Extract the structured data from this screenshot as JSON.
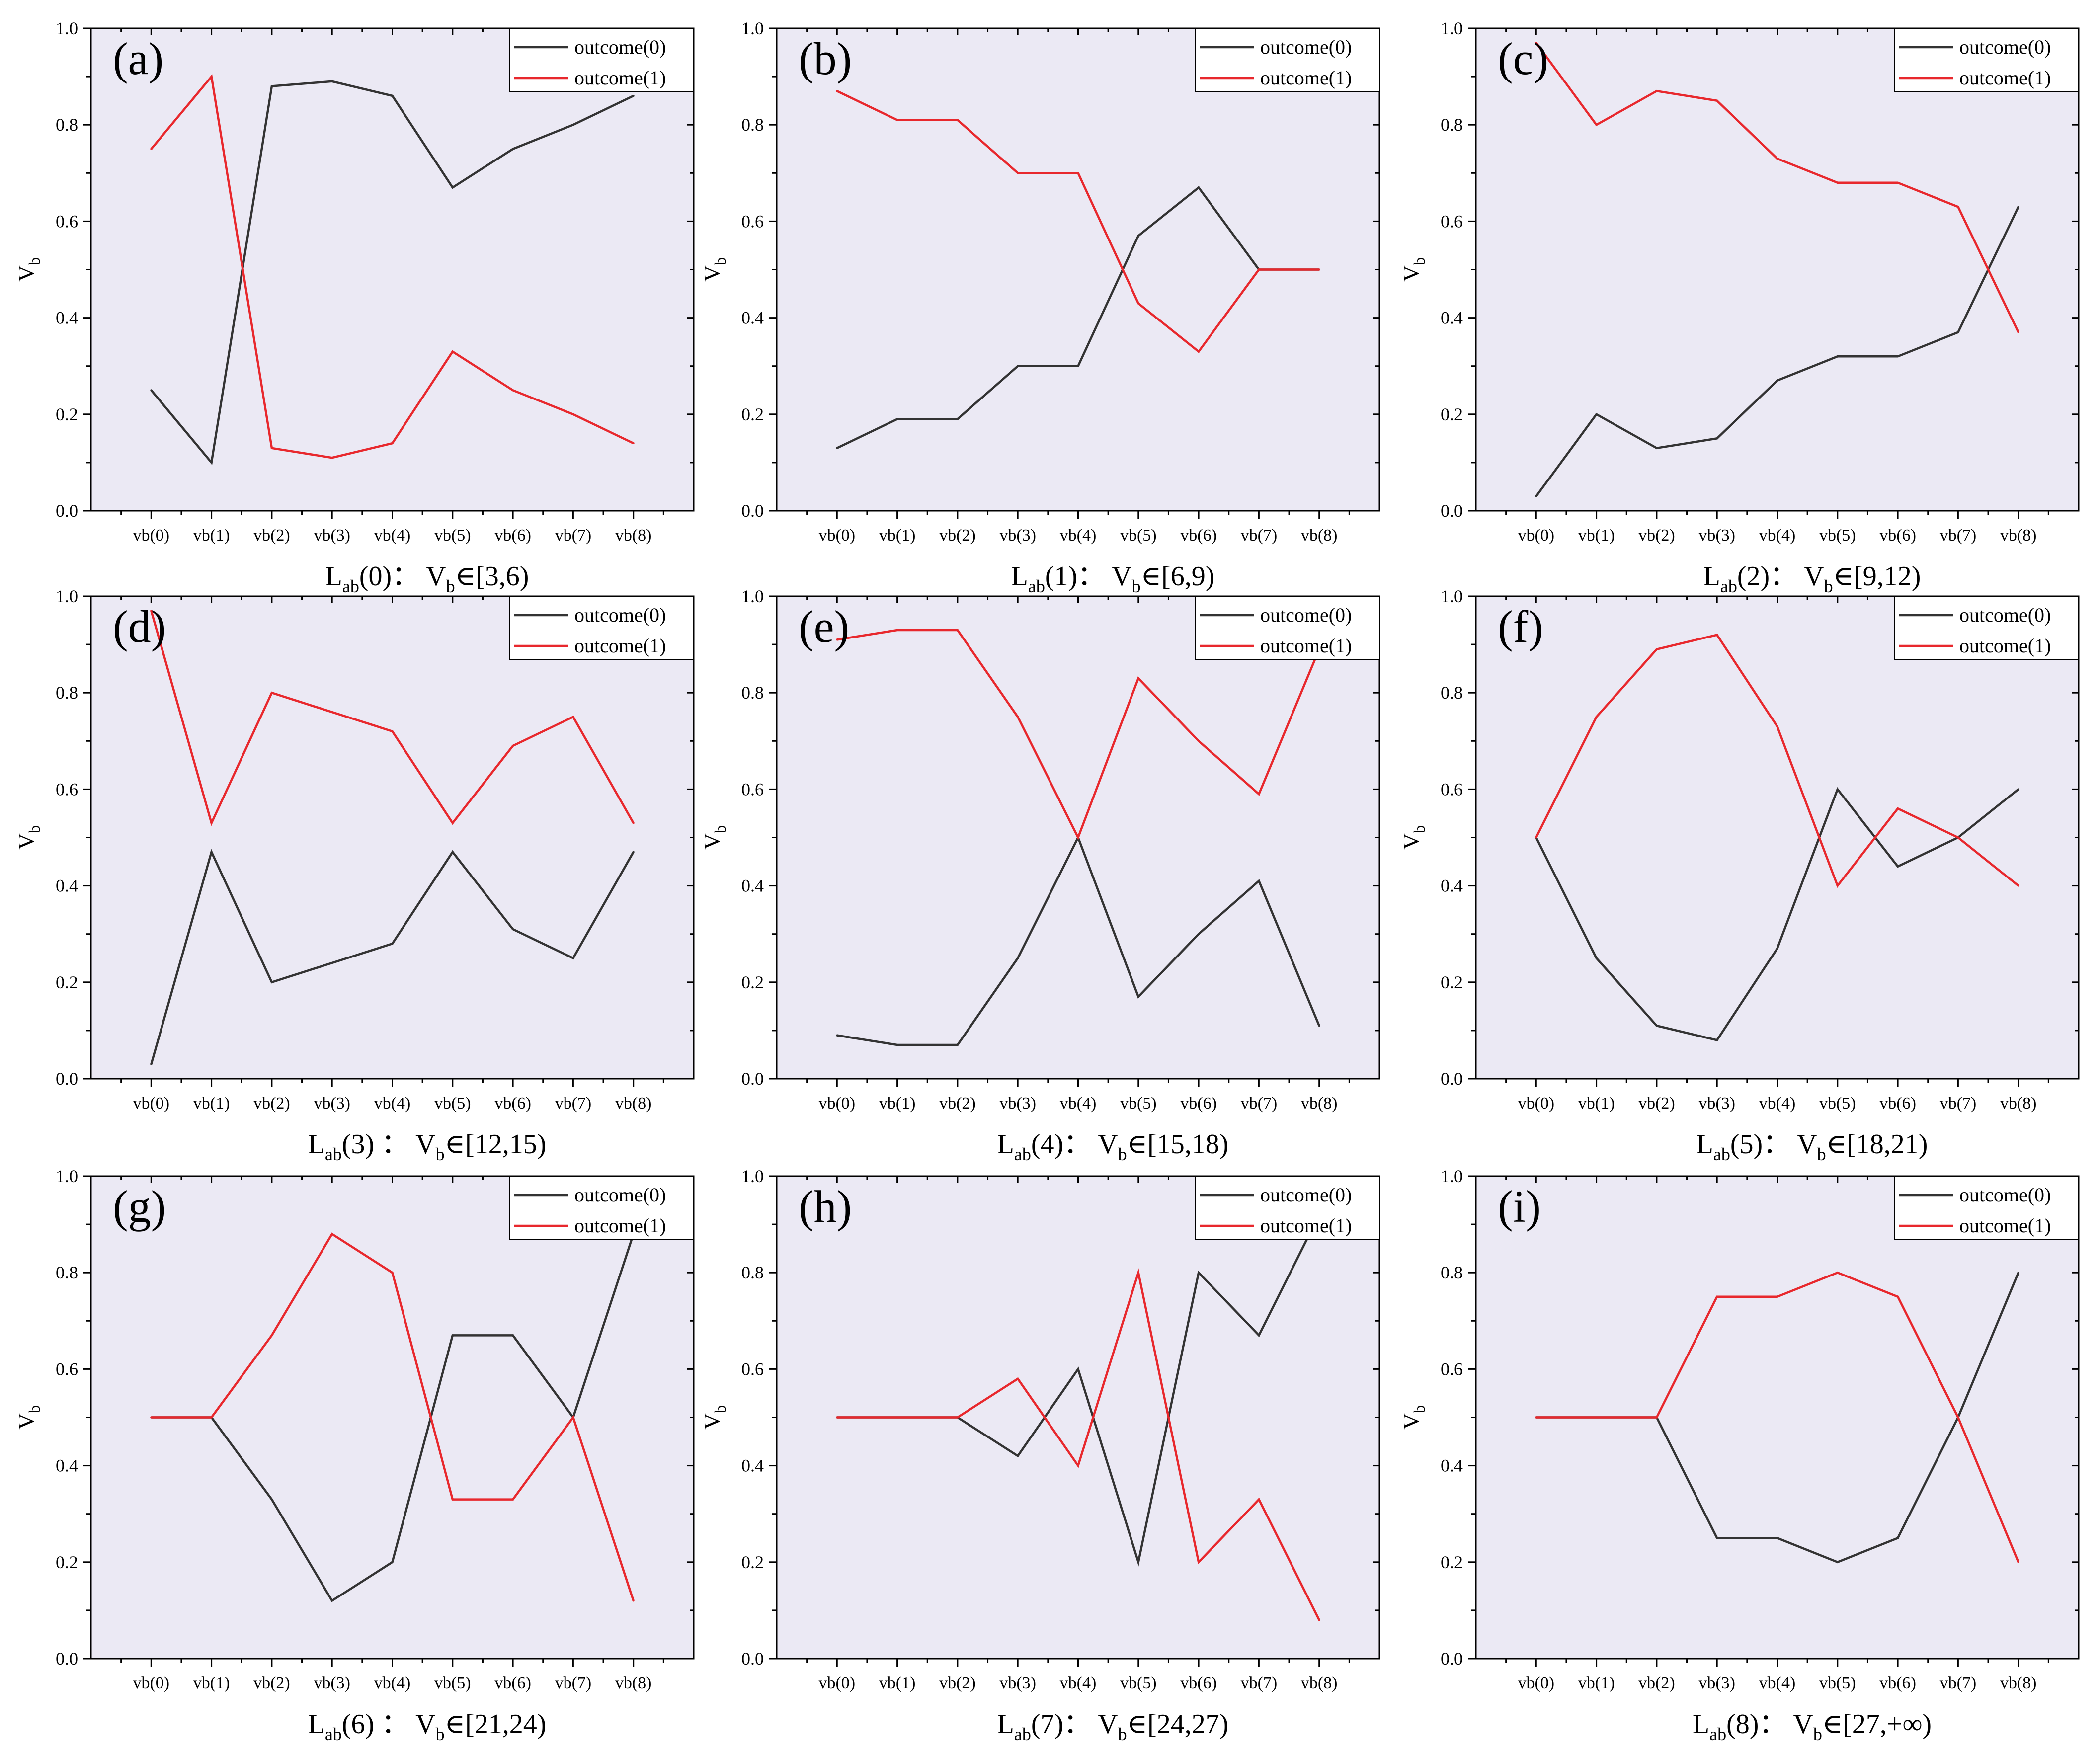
{
  "chart_data": [
    {
      "panel": "(a)",
      "type": "line",
      "categories": [
        "vb(0)",
        "vb(1)",
        "vb(2)",
        "vb(3)",
        "vb(4)",
        "vb(5)",
        "vb(6)",
        "vb(7)",
        "vb(8)"
      ],
      "series": [
        {
          "name": "outcome(0)",
          "color": "#333333",
          "values": [
            0.25,
            0.1,
            0.88,
            0.89,
            0.86,
            0.67,
            0.75,
            0.8,
            0.86
          ]
        },
        {
          "name": "outcome(1)",
          "color": "#e8282d",
          "values": [
            0.75,
            0.9,
            0.13,
            0.11,
            0.14,
            0.33,
            0.25,
            0.2,
            0.14
          ]
        }
      ],
      "ylabel": "V",
      "ylabel_sub": "b",
      "ylim": [
        0,
        1
      ],
      "yticks": [
        "0.0",
        "0.2",
        "0.4",
        "0.6",
        "0.8",
        "1.0"
      ],
      "caption": {
        "main": "L",
        "sub": "ab",
        "rest": "(0)： V",
        "sub2": "b",
        "tail": "∈[3,6)"
      },
      "legend": "top-right",
      "background": "#ebe9f4"
    },
    {
      "panel": "(b)",
      "type": "line",
      "categories": [
        "vb(0)",
        "vb(1)",
        "vb(2)",
        "vb(3)",
        "vb(4)",
        "vb(5)",
        "vb(6)",
        "vb(7)",
        "vb(8)"
      ],
      "series": [
        {
          "name": "outcome(0)",
          "color": "#333333",
          "values": [
            0.13,
            0.19,
            0.19,
            0.3,
            0.3,
            0.57,
            0.67,
            0.5,
            0.5
          ]
        },
        {
          "name": "outcome(1)",
          "color": "#e8282d",
          "values": [
            0.87,
            0.81,
            0.81,
            0.7,
            0.7,
            0.43,
            0.33,
            0.5,
            0.5
          ]
        }
      ],
      "ylabel": "V",
      "ylabel_sub": "b",
      "ylim": [
        0,
        1
      ],
      "yticks": [
        "0.0",
        "0.2",
        "0.4",
        "0.6",
        "0.8",
        "1.0"
      ],
      "caption": {
        "main": "L",
        "sub": "ab",
        "rest": "(1)： V",
        "sub2": "b",
        "tail": "∈[6,9)"
      },
      "legend": "top-right",
      "background": "#ebe9f4"
    },
    {
      "panel": "(c)",
      "type": "line",
      "categories": [
        "vb(0)",
        "vb(1)",
        "vb(2)",
        "vb(3)",
        "vb(4)",
        "vb(5)",
        "vb(6)",
        "vb(7)",
        "vb(8)"
      ],
      "series": [
        {
          "name": "outcome(0)",
          "color": "#333333",
          "values": [
            0.03,
            0.2,
            0.13,
            0.15,
            0.27,
            0.32,
            0.32,
            0.37,
            0.63
          ]
        },
        {
          "name": "outcome(1)",
          "color": "#e8282d",
          "values": [
            0.97,
            0.8,
            0.87,
            0.85,
            0.73,
            0.68,
            0.68,
            0.63,
            0.37
          ]
        }
      ],
      "ylabel": "V",
      "ylabel_sub": "b",
      "ylim": [
        0,
        1
      ],
      "yticks": [
        "0.0",
        "0.2",
        "0.4",
        "0.6",
        "0.8",
        "1.0"
      ],
      "caption": {
        "main": "L",
        "sub": "ab",
        "rest": "(2)： V",
        "sub2": "b",
        "tail": "∈[9,12)"
      },
      "legend": "top-right",
      "background": "#ebe9f4"
    },
    {
      "panel": "(d)",
      "type": "line",
      "categories": [
        "vb(0)",
        "vb(1)",
        "vb(2)",
        "vb(3)",
        "vb(4)",
        "vb(5)",
        "vb(6)",
        "vb(7)",
        "vb(8)"
      ],
      "series": [
        {
          "name": "outcome(0)",
          "color": "#333333",
          "values": [
            0.03,
            0.47,
            0.2,
            0.24,
            0.28,
            0.47,
            0.31,
            0.25,
            0.47
          ]
        },
        {
          "name": "outcome(1)",
          "color": "#e8282d",
          "values": [
            0.97,
            0.53,
            0.8,
            0.76,
            0.72,
            0.53,
            0.69,
            0.75,
            0.53
          ]
        }
      ],
      "ylabel": "V",
      "ylabel_sub": "b",
      "ylim": [
        0,
        1
      ],
      "yticks": [
        "0.0",
        "0.2",
        "0.4",
        "0.6",
        "0.8",
        "1.0"
      ],
      "caption": {
        "main": "L",
        "sub": "ab",
        "rest": "(3) ： V",
        "sub2": "b",
        "tail": "∈[12,15)"
      },
      "legend": "top-right",
      "background": "#ebe9f4"
    },
    {
      "panel": "(e)",
      "type": "line",
      "categories": [
        "vb(0)",
        "vb(1)",
        "vb(2)",
        "vb(3)",
        "vb(4)",
        "vb(5)",
        "vb(6)",
        "vb(7)",
        "vb(8)"
      ],
      "series": [
        {
          "name": "outcome(0)",
          "color": "#333333",
          "values": [
            0.09,
            0.07,
            0.07,
            0.25,
            0.5,
            0.17,
            0.3,
            0.41,
            0.11
          ]
        },
        {
          "name": "outcome(1)",
          "color": "#e8282d",
          "values": [
            0.91,
            0.93,
            0.93,
            0.75,
            0.5,
            0.83,
            0.7,
            0.59,
            0.89
          ]
        }
      ],
      "ylabel": "V",
      "ylabel_sub": "b",
      "ylim": [
        0,
        1
      ],
      "yticks": [
        "0.0",
        "0.2",
        "0.4",
        "0.6",
        "0.8",
        "1.0"
      ],
      "caption": {
        "main": "L",
        "sub": "ab",
        "rest": "(4)： V",
        "sub2": "b",
        "tail": "∈[15,18)"
      },
      "legend": "top-right",
      "background": "#ebe9f4"
    },
    {
      "panel": "(f)",
      "type": "line",
      "categories": [
        "vb(0)",
        "vb(1)",
        "vb(2)",
        "vb(3)",
        "vb(4)",
        "vb(5)",
        "vb(6)",
        "vb(7)",
        "vb(8)"
      ],
      "series": [
        {
          "name": "outcome(0)",
          "color": "#333333",
          "values": [
            0.5,
            0.25,
            0.11,
            0.08,
            0.27,
            0.6,
            0.44,
            0.5,
            0.6
          ]
        },
        {
          "name": "outcome(1)",
          "color": "#e8282d",
          "values": [
            0.5,
            0.75,
            0.89,
            0.92,
            0.73,
            0.4,
            0.56,
            0.5,
            0.4
          ]
        }
      ],
      "ylabel": "V",
      "ylabel_sub": "b",
      "ylim": [
        0,
        1
      ],
      "yticks": [
        "0.0",
        "0.2",
        "0.4",
        "0.6",
        "0.8",
        "1.0"
      ],
      "caption": {
        "main": "L",
        "sub": "ab",
        "rest": "(5)： V",
        "sub2": "b",
        "tail": "∈[18,21)"
      },
      "legend": "top-right",
      "background": "#ebe9f4"
    },
    {
      "panel": "(g)",
      "type": "line",
      "categories": [
        "vb(0)",
        "vb(1)",
        "vb(2)",
        "vb(3)",
        "vb(4)",
        "vb(5)",
        "vb(6)",
        "vb(7)",
        "vb(8)"
      ],
      "series": [
        {
          "name": "outcome(0)",
          "color": "#333333",
          "values": [
            0.5,
            0.5,
            0.33,
            0.12,
            0.2,
            0.67,
            0.67,
            0.5,
            0.88
          ]
        },
        {
          "name": "outcome(1)",
          "color": "#e8282d",
          "values": [
            0.5,
            0.5,
            0.67,
            0.88,
            0.8,
            0.33,
            0.33,
            0.5,
            0.12
          ]
        }
      ],
      "ylabel": "V",
      "ylabel_sub": "b",
      "ylim": [
        0,
        1
      ],
      "yticks": [
        "0.0",
        "0.2",
        "0.4",
        "0.6",
        "0.8",
        "1.0"
      ],
      "caption": {
        "main": "L",
        "sub": "ab",
        "rest": "(6)  ： V",
        "sub2": "b",
        "tail": "∈[21,24)"
      },
      "legend": "top-right",
      "background": "#ebe9f4"
    },
    {
      "panel": "(h)",
      "type": "line",
      "categories": [
        "vb(0)",
        "vb(1)",
        "vb(2)",
        "vb(3)",
        "vb(4)",
        "vb(5)",
        "vb(6)",
        "vb(7)",
        "vb(8)"
      ],
      "series": [
        {
          "name": "outcome(0)",
          "color": "#333333",
          "values": [
            0.5,
            0.5,
            0.5,
            0.42,
            0.6,
            0.2,
            0.8,
            0.67,
            0.92
          ]
        },
        {
          "name": "outcome(1)",
          "color": "#e8282d",
          "values": [
            0.5,
            0.5,
            0.5,
            0.58,
            0.4,
            0.8,
            0.2,
            0.33,
            0.08
          ]
        }
      ],
      "ylabel": "V",
      "ylabel_sub": "b",
      "ylim": [
        0,
        1
      ],
      "yticks": [
        "0.0",
        "0.2",
        "0.4",
        "0.6",
        "0.8",
        "1.0"
      ],
      "caption": {
        "main": "L",
        "sub": "ab",
        "rest": "(7)： V",
        "sub2": "b",
        "tail": "∈[24,27)"
      },
      "legend": "top-right",
      "background": "#ebe9f4"
    },
    {
      "panel": "(i)",
      "type": "line",
      "categories": [
        "vb(0)",
        "vb(1)",
        "vb(2)",
        "vb(3)",
        "vb(4)",
        "vb(5)",
        "vb(6)",
        "vb(7)",
        "vb(8)"
      ],
      "series": [
        {
          "name": "outcome(0)",
          "color": "#333333",
          "values": [
            0.5,
            0.5,
            0.5,
            0.25,
            0.25,
            0.2,
            0.25,
            0.5,
            0.8
          ]
        },
        {
          "name": "outcome(1)",
          "color": "#e8282d",
          "values": [
            0.5,
            0.5,
            0.5,
            0.75,
            0.75,
            0.8,
            0.75,
            0.5,
            0.2
          ]
        }
      ],
      "ylabel": "V",
      "ylabel_sub": "b",
      "ylim": [
        0,
        1
      ],
      "yticks": [
        "0.0",
        "0.2",
        "0.4",
        "0.6",
        "0.8",
        "1.0"
      ],
      "caption": {
        "main": "L",
        "sub": "ab",
        "rest": "(8)： V",
        "sub2": "b",
        "tail": "∈[27,+∞)"
      },
      "legend": "top-right",
      "background": "#ebe9f4"
    }
  ]
}
